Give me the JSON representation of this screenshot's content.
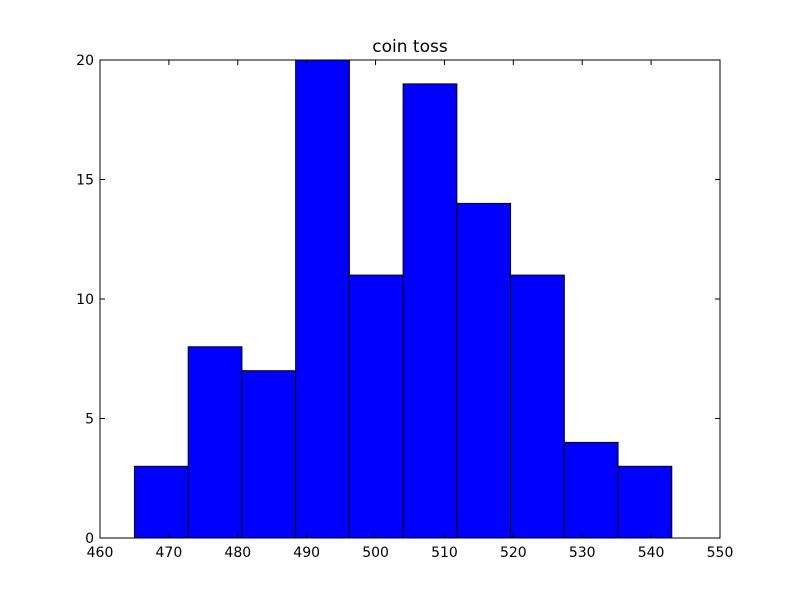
{
  "chart_data": {
    "type": "bar",
    "title": "coin toss",
    "xlabel": "",
    "ylabel": "",
    "xlim": [
      460,
      550
    ],
    "ylim": [
      0,
      20
    ],
    "x_ticks": [
      460,
      470,
      480,
      490,
      500,
      510,
      520,
      530,
      540,
      550
    ],
    "y_ticks": [
      0,
      5,
      10,
      15,
      20
    ],
    "bin_edges": [
      465.0,
      472.8,
      480.6,
      488.4,
      496.2,
      504.0,
      511.8,
      519.6,
      527.4,
      535.2,
      543.0
    ],
    "values": [
      3,
      8,
      7,
      20,
      11,
      19,
      14,
      11,
      4,
      3
    ],
    "grid": false,
    "legend": "none",
    "bar_color": "#0000ff",
    "edge_color": "#000000"
  }
}
